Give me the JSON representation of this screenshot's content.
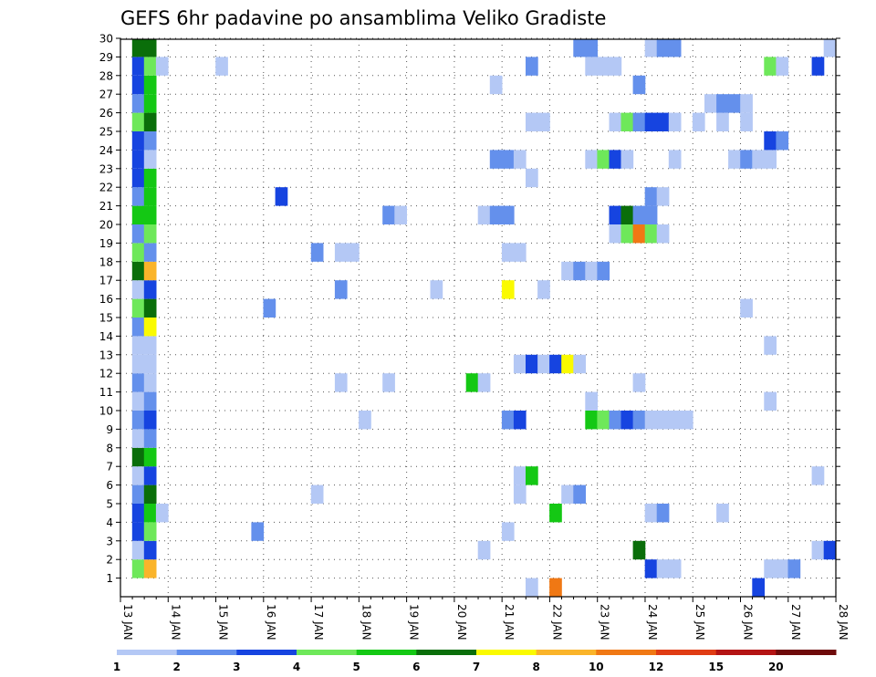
{
  "chart_data": {
    "type": "heatmap",
    "title": "GEFS 6hr padavine po ansamblima Veliko Gradiste",
    "y_labels": [
      "1",
      "2",
      "3",
      "4",
      "5",
      "6",
      "7",
      "8",
      "9",
      "10",
      "11",
      "12",
      "13",
      "14",
      "15",
      "16",
      "17",
      "18",
      "19",
      "20",
      "21",
      "22",
      "23",
      "24",
      "25",
      "26",
      "27",
      "28",
      "29",
      "30"
    ],
    "x_labels": [
      "13 JAN",
      "14 JAN",
      "15 JAN",
      "16 JAN",
      "17 JAN",
      "18 JAN",
      "19 JAN",
      "20 JAN",
      "21 JAN",
      "22 JAN",
      "23 JAN",
      "24 JAN",
      "25 JAN",
      "26 JAN",
      "27 JAN",
      "28 JAN"
    ],
    "x_range_days": [
      13,
      28
    ],
    "time_step_hours": 6,
    "grid": "dotted",
    "color_scale": {
      "ticks": [
        "1",
        "2",
        "3",
        "4",
        "5",
        "6",
        "7",
        "8",
        "10",
        "12",
        "15",
        "20"
      ],
      "bins": [
        {
          "min": 1,
          "color": "#b4c8f5"
        },
        {
          "min": 2,
          "color": "#6490ec"
        },
        {
          "min": 3,
          "color": "#1644e0"
        },
        {
          "min": 4,
          "color": "#6ee85a"
        },
        {
          "min": 5,
          "color": "#14c814"
        },
        {
          "min": 6,
          "color": "#0a6e0a"
        },
        {
          "min": 7,
          "color": "#fafa00"
        },
        {
          "min": 8,
          "color": "#fab42a"
        },
        {
          "min": 10,
          "color": "#f07814"
        },
        {
          "min": 12,
          "color": "#e03c14"
        },
        {
          "min": 15,
          "color": "#b41414"
        },
        {
          "min": 20,
          "color": "#6e0a0a"
        }
      ]
    },
    "cells": [
      {
        "x": 13.25,
        "y": 1,
        "v": 4.5
      },
      {
        "x": 13.5,
        "y": 1,
        "v": 8.5
      },
      {
        "x": 24.0,
        "y": 1,
        "v": 3.5
      },
      {
        "x": 24.25,
        "y": 1,
        "v": 1.5
      },
      {
        "x": 24.5,
        "y": 1,
        "v": 1.5
      },
      {
        "x": 26.5,
        "y": 1,
        "v": 1.5
      },
      {
        "x": 26.75,
        "y": 1,
        "v": 1.5
      },
      {
        "x": 27.0,
        "y": 1,
        "v": 2.5
      },
      {
        "x": 13.25,
        "y": 2,
        "v": 1.5
      },
      {
        "x": 13.5,
        "y": 2,
        "v": 3.5
      },
      {
        "x": 20.5,
        "y": 2,
        "v": 1.5
      },
      {
        "x": 23.75,
        "y": 2,
        "v": 6.5
      },
      {
        "x": 27.5,
        "y": 2,
        "v": 1.5
      },
      {
        "x": 27.75,
        "y": 2,
        "v": 3.5
      },
      {
        "x": 13.25,
        "y": 3,
        "v": 3.5
      },
      {
        "x": 13.5,
        "y": 3,
        "v": 4.5
      },
      {
        "x": 15.75,
        "y": 3,
        "v": 2.5
      },
      {
        "x": 21.0,
        "y": 3,
        "v": 1.5
      },
      {
        "x": 13.25,
        "y": 4,
        "v": 3.5
      },
      {
        "x": 13.5,
        "y": 4,
        "v": 5.5
      },
      {
        "x": 13.75,
        "y": 4,
        "v": 1.5
      },
      {
        "x": 22.0,
        "y": 4,
        "v": 5.5
      },
      {
        "x": 24.0,
        "y": 4,
        "v": 1.5
      },
      {
        "x": 24.25,
        "y": 4,
        "v": 2.5
      },
      {
        "x": 25.5,
        "y": 4,
        "v": 1.5
      },
      {
        "x": 13.25,
        "y": 5,
        "v": 2.5
      },
      {
        "x": 13.5,
        "y": 5,
        "v": 6.5
      },
      {
        "x": 17.0,
        "y": 5,
        "v": 1.5
      },
      {
        "x": 21.25,
        "y": 5,
        "v": 1.5
      },
      {
        "x": 22.25,
        "y": 5,
        "v": 1.5
      },
      {
        "x": 22.5,
        "y": 5,
        "v": 2.5
      },
      {
        "x": 13.25,
        "y": 6,
        "v": 1.5
      },
      {
        "x": 13.5,
        "y": 6,
        "v": 3.5
      },
      {
        "x": 21.25,
        "y": 6,
        "v": 1.5
      },
      {
        "x": 21.5,
        "y": 6,
        "v": 5.5
      },
      {
        "x": 27.5,
        "y": 6,
        "v": 1.5
      },
      {
        "x": 13.25,
        "y": 7,
        "v": 6.5
      },
      {
        "x": 13.5,
        "y": 7,
        "v": 5.5
      },
      {
        "x": 13.25,
        "y": 8,
        "v": 1.5
      },
      {
        "x": 13.5,
        "y": 8,
        "v": 2.5
      },
      {
        "x": 13.25,
        "y": 9,
        "v": 2.5
      },
      {
        "x": 13.5,
        "y": 9,
        "v": 3.5
      },
      {
        "x": 18.0,
        "y": 9,
        "v": 1.5
      },
      {
        "x": 21.0,
        "y": 9,
        "v": 2.5
      },
      {
        "x": 21.25,
        "y": 9,
        "v": 3.5
      },
      {
        "x": 22.75,
        "y": 9,
        "v": 5.5
      },
      {
        "x": 23.0,
        "y": 9,
        "v": 4.5
      },
      {
        "x": 23.25,
        "y": 9,
        "v": 2.5
      },
      {
        "x": 23.5,
        "y": 9,
        "v": 3.5
      },
      {
        "x": 23.75,
        "y": 9,
        "v": 2.5
      },
      {
        "x": 24.0,
        "y": 9,
        "v": 1.5
      },
      {
        "x": 24.25,
        "y": 9,
        "v": 1.5
      },
      {
        "x": 24.5,
        "y": 9,
        "v": 1.5
      },
      {
        "x": 24.75,
        "y": 9,
        "v": 1.5
      },
      {
        "x": 13.25,
        "y": 10,
        "v": 1.5
      },
      {
        "x": 13.5,
        "y": 10,
        "v": 2.5
      },
      {
        "x": 22.75,
        "y": 10,
        "v": 1.5
      },
      {
        "x": 26.5,
        "y": 10,
        "v": 1.5
      },
      {
        "x": 13.25,
        "y": 11,
        "v": 2.5
      },
      {
        "x": 13.5,
        "y": 11,
        "v": 1.5
      },
      {
        "x": 17.5,
        "y": 11,
        "v": 1.5
      },
      {
        "x": 18.5,
        "y": 11,
        "v": 1.5
      },
      {
        "x": 20.25,
        "y": 11,
        "v": 5.5
      },
      {
        "x": 20.5,
        "y": 11,
        "v": 1.5
      },
      {
        "x": 23.75,
        "y": 11,
        "v": 1.5
      },
      {
        "x": 13.25,
        "y": 12,
        "v": 1.5
      },
      {
        "x": 13.5,
        "y": 12,
        "v": 1.5
      },
      {
        "x": 21.25,
        "y": 12,
        "v": 1.5
      },
      {
        "x": 21.5,
        "y": 12,
        "v": 3.5
      },
      {
        "x": 21.75,
        "y": 12,
        "v": 1.5
      },
      {
        "x": 22.0,
        "y": 12,
        "v": 3.5
      },
      {
        "x": 22.25,
        "y": 12,
        "v": 7.5
      },
      {
        "x": 22.5,
        "y": 12,
        "v": 1.5
      },
      {
        "x": 13.25,
        "y": 13,
        "v": 1.5
      },
      {
        "x": 13.5,
        "y": 13,
        "v": 1.5
      },
      {
        "x": 26.5,
        "y": 13,
        "v": 1.5
      },
      {
        "x": 13.25,
        "y": 14,
        "v": 2.5
      },
      {
        "x": 13.5,
        "y": 14,
        "v": 7.5
      },
      {
        "x": 13.25,
        "y": 15,
        "v": 4.5
      },
      {
        "x": 13.5,
        "y": 15,
        "v": 6.5
      },
      {
        "x": 16.0,
        "y": 15,
        "v": 2.5
      },
      {
        "x": 26.0,
        "y": 15,
        "v": 1.5
      },
      {
        "x": 13.25,
        "y": 16,
        "v": 1.5
      },
      {
        "x": 13.5,
        "y": 16,
        "v": 3.5
      },
      {
        "x": 17.5,
        "y": 16,
        "v": 2.5
      },
      {
        "x": 19.5,
        "y": 16,
        "v": 1.5
      },
      {
        "x": 21.0,
        "y": 16,
        "v": 7.5
      },
      {
        "x": 21.75,
        "y": 16,
        "v": 1.5
      },
      {
        "x": 13.25,
        "y": 17,
        "v": 6.5
      },
      {
        "x": 13.5,
        "y": 17,
        "v": 8.5
      },
      {
        "x": 22.25,
        "y": 17,
        "v": 1.5
      },
      {
        "x": 22.5,
        "y": 17,
        "v": 2.5
      },
      {
        "x": 22.75,
        "y": 17,
        "v": 1.5
      },
      {
        "x": 23.0,
        "y": 17,
        "v": 2.5
      },
      {
        "x": 13.25,
        "y": 18,
        "v": 4.5
      },
      {
        "x": 13.5,
        "y": 18,
        "v": 2.5
      },
      {
        "x": 17.0,
        "y": 18,
        "v": 2.5
      },
      {
        "x": 17.5,
        "y": 18,
        "v": 1.5
      },
      {
        "x": 17.75,
        "y": 18,
        "v": 1.5
      },
      {
        "x": 21.0,
        "y": 18,
        "v": 1.5
      },
      {
        "x": 21.25,
        "y": 18,
        "v": 1.5
      },
      {
        "x": 13.25,
        "y": 19,
        "v": 2.5
      },
      {
        "x": 13.5,
        "y": 19,
        "v": 4.5
      },
      {
        "x": 23.25,
        "y": 19,
        "v": 1.5
      },
      {
        "x": 23.5,
        "y": 19,
        "v": 4.5
      },
      {
        "x": 23.75,
        "y": 19,
        "v": 10.5
      },
      {
        "x": 24.0,
        "y": 19,
        "v": 4.5
      },
      {
        "x": 24.25,
        "y": 19,
        "v": 1.5
      },
      {
        "x": 13.25,
        "y": 20,
        "v": 5.5
      },
      {
        "x": 13.5,
        "y": 20,
        "v": 5.5
      },
      {
        "x": 18.5,
        "y": 20,
        "v": 2.5
      },
      {
        "x": 18.75,
        "y": 20,
        "v": 1.5
      },
      {
        "x": 20.5,
        "y": 20,
        "v": 1.5
      },
      {
        "x": 20.75,
        "y": 20,
        "v": 2.5
      },
      {
        "x": 21.0,
        "y": 20,
        "v": 2.5
      },
      {
        "x": 23.25,
        "y": 20,
        "v": 3.5
      },
      {
        "x": 23.5,
        "y": 20,
        "v": 6.5
      },
      {
        "x": 23.75,
        "y": 20,
        "v": 2.5
      },
      {
        "x": 24.0,
        "y": 20,
        "v": 2.5
      },
      {
        "x": 13.25,
        "y": 21,
        "v": 2.5
      },
      {
        "x": 13.5,
        "y": 21,
        "v": 5.5
      },
      {
        "x": 16.25,
        "y": 21,
        "v": 3.5
      },
      {
        "x": 24.0,
        "y": 21,
        "v": 2.5
      },
      {
        "x": 24.25,
        "y": 21,
        "v": 1.5
      },
      {
        "x": 13.25,
        "y": 22,
        "v": 3.5
      },
      {
        "x": 13.5,
        "y": 22,
        "v": 5.5
      },
      {
        "x": 21.5,
        "y": 22,
        "v": 1.5
      },
      {
        "x": 13.25,
        "y": 23,
        "v": 3.5
      },
      {
        "x": 13.5,
        "y": 23,
        "v": 1.5
      },
      {
        "x": 20.75,
        "y": 23,
        "v": 2.5
      },
      {
        "x": 21.0,
        "y": 23,
        "v": 2.5
      },
      {
        "x": 21.25,
        "y": 23,
        "v": 1.5
      },
      {
        "x": 22.75,
        "y": 23,
        "v": 1.5
      },
      {
        "x": 23.0,
        "y": 23,
        "v": 4.5
      },
      {
        "x": 23.25,
        "y": 23,
        "v": 3.5
      },
      {
        "x": 23.5,
        "y": 23,
        "v": 1.5
      },
      {
        "x": 24.5,
        "y": 23,
        "v": 1.5
      },
      {
        "x": 25.75,
        "y": 23,
        "v": 1.5
      },
      {
        "x": 26.0,
        "y": 23,
        "v": 2.5
      },
      {
        "x": 26.25,
        "y": 23,
        "v": 1.5
      },
      {
        "x": 26.5,
        "y": 23,
        "v": 1.5
      },
      {
        "x": 13.25,
        "y": 24,
        "v": 3.5
      },
      {
        "x": 13.5,
        "y": 24,
        "v": 2.5
      },
      {
        "x": 26.5,
        "y": 24,
        "v": 3.5
      },
      {
        "x": 26.75,
        "y": 24,
        "v": 2.5
      },
      {
        "x": 13.25,
        "y": 25,
        "v": 4.5
      },
      {
        "x": 13.5,
        "y": 25,
        "v": 6.5
      },
      {
        "x": 21.5,
        "y": 25,
        "v": 1.5
      },
      {
        "x": 21.75,
        "y": 25,
        "v": 1.5
      },
      {
        "x": 23.25,
        "y": 25,
        "v": 1.5
      },
      {
        "x": 23.5,
        "y": 25,
        "v": 4.5
      },
      {
        "x": 23.75,
        "y": 25,
        "v": 2.5
      },
      {
        "x": 24.0,
        "y": 25,
        "v": 3.5
      },
      {
        "x": 24.25,
        "y": 25,
        "v": 3.5
      },
      {
        "x": 24.5,
        "y": 25,
        "v": 1.5
      },
      {
        "x": 25.0,
        "y": 25,
        "v": 1.5
      },
      {
        "x": 25.5,
        "y": 25,
        "v": 1.5
      },
      {
        "x": 26.0,
        "y": 25,
        "v": 1.5
      },
      {
        "x": 13.25,
        "y": 26,
        "v": 2.5
      },
      {
        "x": 13.5,
        "y": 26,
        "v": 5.5
      },
      {
        "x": 25.25,
        "y": 26,
        "v": 1.5
      },
      {
        "x": 25.5,
        "y": 26,
        "v": 2.5
      },
      {
        "x": 25.75,
        "y": 26,
        "v": 2.5
      },
      {
        "x": 26.0,
        "y": 26,
        "v": 1.5
      },
      {
        "x": 13.25,
        "y": 27,
        "v": 3.5
      },
      {
        "x": 13.5,
        "y": 27,
        "v": 5.5
      },
      {
        "x": 20.75,
        "y": 27,
        "v": 1.5
      },
      {
        "x": 23.75,
        "y": 27,
        "v": 2.5
      },
      {
        "x": 13.25,
        "y": 28,
        "v": 3.5
      },
      {
        "x": 13.5,
        "y": 28,
        "v": 4.5
      },
      {
        "x": 13.75,
        "y": 28,
        "v": 1.5
      },
      {
        "x": 15.0,
        "y": 28,
        "v": 1.5
      },
      {
        "x": 21.5,
        "y": 28,
        "v": 2.5
      },
      {
        "x": 22.75,
        "y": 28,
        "v": 1.5
      },
      {
        "x": 23.0,
        "y": 28,
        "v": 1.5
      },
      {
        "x": 23.25,
        "y": 28,
        "v": 1.5
      },
      {
        "x": 26.5,
        "y": 28,
        "v": 4.5
      },
      {
        "x": 26.75,
        "y": 28,
        "v": 1.5
      },
      {
        "x": 27.5,
        "y": 28,
        "v": 3.5
      },
      {
        "x": 13.25,
        "y": 29,
        "v": 6.5
      },
      {
        "x": 13.5,
        "y": 29,
        "v": 6.5
      },
      {
        "x": 22.5,
        "y": 29,
        "v": 2.5
      },
      {
        "x": 22.75,
        "y": 29,
        "v": 2.5
      },
      {
        "x": 24.0,
        "y": 29,
        "v": 1.5
      },
      {
        "x": 24.25,
        "y": 29,
        "v": 2.5
      },
      {
        "x": 24.5,
        "y": 29,
        "v": 2.5
      },
      {
        "x": 27.75,
        "y": 29,
        "v": 1.5
      },
      {
        "x": 13.25,
        "y": 30,
        "v": 2.5
      },
      {
        "x": 13.5,
        "y": 30,
        "v": 7.5
      },
      {
        "x": 25.25,
        "y": 30,
        "v": 2.5
      },
      {
        "x": 25.5,
        "y": 30,
        "v": 2.5
      },
      {
        "x": 27.5,
        "y": 30,
        "v": 2.5
      },
      {
        "x": 21.5,
        "y": 0,
        "v": 1.5
      },
      {
        "x": 22.0,
        "y": 0,
        "v": 10.5
      },
      {
        "x": 26.25,
        "y": 0,
        "v": 3.5
      }
    ]
  }
}
